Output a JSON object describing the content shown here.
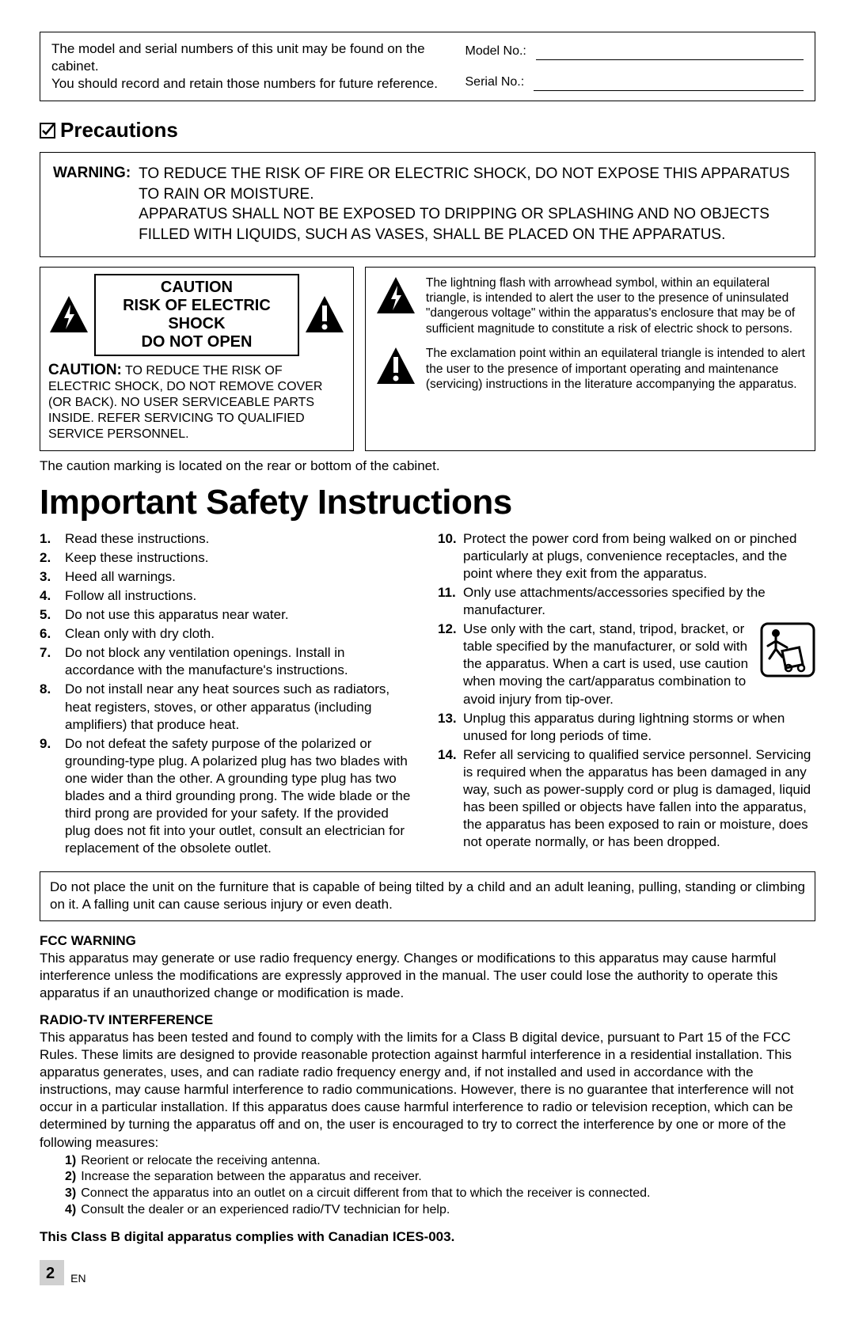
{
  "serial_box": {
    "note1": "The model and serial numbers of this unit may be found on the cabinet.",
    "note2": "You should record and retain those numbers for future reference.",
    "model_label": "Model No.:",
    "serial_label": "Serial No.:"
  },
  "precautions": {
    "heading": "Precautions",
    "warning_label": "WARNING:",
    "warning_text1": "TO REDUCE THE RISK OF FIRE OR ELECTRIC SHOCK, DO NOT EXPOSE THIS APPARATUS TO RAIN OR MOISTURE.",
    "warning_text2": "APPARATUS SHALL NOT BE EXPOSED TO DRIPPING OR SPLASHING AND NO OBJECTS FILLED WITH LIQUIDS, SUCH AS VASES, SHALL BE PLACED ON THE APPARATUS."
  },
  "caution_banner": {
    "line1": "CAUTION",
    "line2": "RISK OF ELECTRIC SHOCK",
    "line3": "DO NOT OPEN"
  },
  "caution_box": {
    "label": "CAUTION:",
    "text": "TO REDUCE THE RISK OF ELECTRIC SHOCK, DO NOT REMOVE COVER (OR BACK). NO USER SERVICEABLE PARTS INSIDE. REFER SERVICING TO QUALIFIED SERVICE PERSONNEL."
  },
  "symbols": {
    "bolt": "The lightning flash with arrowhead symbol, within an equilateral triangle, is intended to alert the user to the presence of uninsulated \"dangerous voltage\" within the apparatus's enclosure that may be of sufficient magnitude to constitute a risk of electric shock to persons.",
    "excl": "The exclamation point within an equilateral triangle is intended to alert the user to the presence of important operating and maintenance (servicing) instructions in the literature accompanying the apparatus."
  },
  "rear_note": "The caution marking is located on the rear or bottom of the cabinet.",
  "safety": {
    "title": "Important Safety Instructions",
    "items_left": [
      "Read these instructions.",
      "Keep these instructions.",
      "Heed all warnings.",
      "Follow all instructions.",
      "Do not use this apparatus near water.",
      "Clean only with dry cloth.",
      "Do not block any ventilation openings. Install in accordance with the manufacture's instructions.",
      "Do not install near any heat sources such as radiators, heat registers, stoves, or other apparatus (including amplifiers) that produce heat.",
      "Do not defeat the safety purpose of the polarized or grounding-type plug. A polarized plug has two blades with one wider than the other. A grounding type plug has two blades and a third grounding prong. The wide blade or the third prong are provided for your safety. If the provided plug does not fit into your outlet, consult an electrician for replacement of the obsolete outlet."
    ],
    "items_right": [
      "Protect the power cord from being walked on or pinched particularly at plugs, convenience receptacles, and the point where they exit from the apparatus.",
      "Only use attachments/accessories specified by the manufacturer.",
      "Use only with the cart, stand, tripod, bracket, or table specified by the manufacturer, or sold with the apparatus. When a cart is used, use caution when moving the cart/apparatus combination to avoid injury from tip-over.",
      "Unplug this apparatus during lightning storms or when unused for long periods of time.",
      "Refer all servicing to qualified service personnel. Servicing is required when the apparatus has been damaged in any way, such as power-supply cord or plug is damaged, liquid has been spilled or objects have fallen into the apparatus, the apparatus has been exposed to rain or moisture, does not operate normally, or has been dropped."
    ]
  },
  "tilt_warning": "Do not place the unit on the furniture that is capable of being tilted by a child and an adult leaning, pulling, standing or climbing on it. A falling unit can cause serious injury or even death.",
  "fcc": {
    "head": "FCC WARNING",
    "body": "This apparatus may generate or use radio frequency energy. Changes or modifications to this apparatus may cause harmful interference unless the modifications are expressly approved in the manual. The user could lose the authority to operate this apparatus if an unauthorized change or modification is made."
  },
  "radio": {
    "head": "RADIO-TV INTERFERENCE",
    "body": "This apparatus has been tested and found to comply with the limits for a Class B digital device, pursuant to Part 15 of the FCC Rules. These limits are designed to provide reasonable protection against harmful interference in a residential installation. This apparatus generates, uses, and can radiate radio frequency energy and, if not installed and used in accordance with the instructions, may cause harmful interference to radio communications. However, there is no guarantee that interference will not occur in a particular installation. If this apparatus does cause harmful interference to radio or television reception, which can be determined by turning the apparatus off and on, the user is encouraged to try to correct the interference by one or more of the following measures:",
    "list": [
      "Reorient or relocate the receiving antenna.",
      "Increase the separation between the apparatus and receiver.",
      "Connect the apparatus into an outlet on a circuit different from that to which the receiver is connected.",
      "Consult the dealer or an experienced radio/TV technician for help."
    ]
  },
  "canada": "This Class B digital apparatus complies with Canadian ICES-003.",
  "footer": {
    "page": "2",
    "lang": "EN"
  },
  "colors": {
    "text": "#000000",
    "bg": "#ffffff",
    "footer_bg": "#d0d0d0"
  }
}
